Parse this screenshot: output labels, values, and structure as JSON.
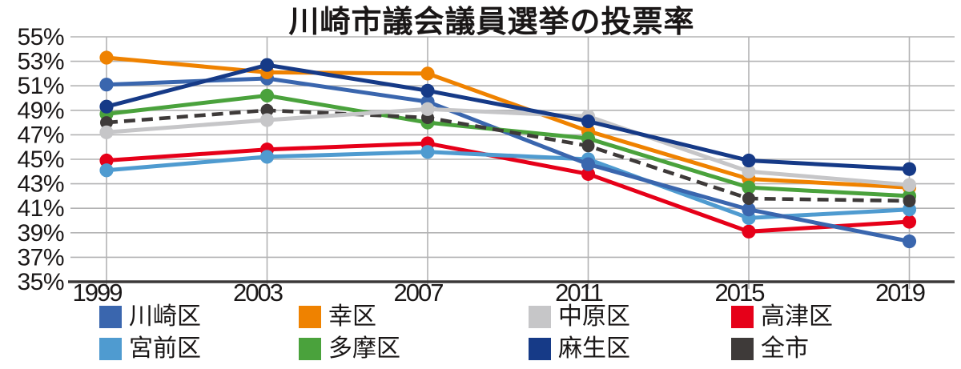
{
  "title": "川崎市議会議員選挙の投票率",
  "colors": {
    "background": "#ffffff",
    "grid": "#b3b3b4",
    "axis": "#3b3838",
    "text": "#1a1717"
  },
  "chart_data": {
    "type": "line",
    "title": "川崎市議会議員選挙の投票率",
    "categories": [
      "1999",
      "2003",
      "2007",
      "2011",
      "2015",
      "2019"
    ],
    "series": [
      {
        "name": "川崎区",
        "color": "#3A66AE",
        "dashed": false,
        "values": [
          51.1,
          51.6,
          49.7,
          44.6,
          40.9,
          38.3
        ]
      },
      {
        "name": "幸区",
        "color": "#EF8200",
        "dashed": false,
        "values": [
          53.3,
          52.1,
          52.0,
          47.3,
          43.4,
          42.7
        ]
      },
      {
        "name": "中原区",
        "color": "#C6C6C8",
        "dashed": false,
        "values": [
          47.2,
          48.2,
          49.1,
          48.5,
          44.0,
          42.9
        ]
      },
      {
        "name": "高津区",
        "color": "#E60019",
        "dashed": false,
        "values": [
          44.9,
          45.8,
          46.3,
          43.8,
          39.1,
          39.9
        ]
      },
      {
        "name": "宮前区",
        "color": "#4F9BD0",
        "dashed": false,
        "values": [
          44.1,
          45.2,
          45.6,
          45.0,
          40.2,
          40.9
        ]
      },
      {
        "name": "多摩区",
        "color": "#4AA23C",
        "dashed": false,
        "values": [
          48.7,
          50.2,
          48.0,
          46.7,
          42.7,
          42.0
        ]
      },
      {
        "name": "麻生区",
        "color": "#163A87",
        "dashed": false,
        "values": [
          49.3,
          52.7,
          50.6,
          48.1,
          44.9,
          44.2
        ]
      },
      {
        "name": "全市",
        "color": "#3E3A39",
        "dashed": true,
        "values": [
          48.0,
          49.0,
          48.4,
          46.1,
          41.8,
          41.6
        ]
      }
    ],
    "draw_order": [
      3,
      4,
      0,
      1,
      5,
      7,
      2,
      6
    ],
    "xlabel": "",
    "ylabel": "",
    "ylim": [
      35,
      55
    ],
    "ytick_step": 2,
    "ytick_suffix": "%",
    "grid": true,
    "legend_position": "bottom"
  }
}
